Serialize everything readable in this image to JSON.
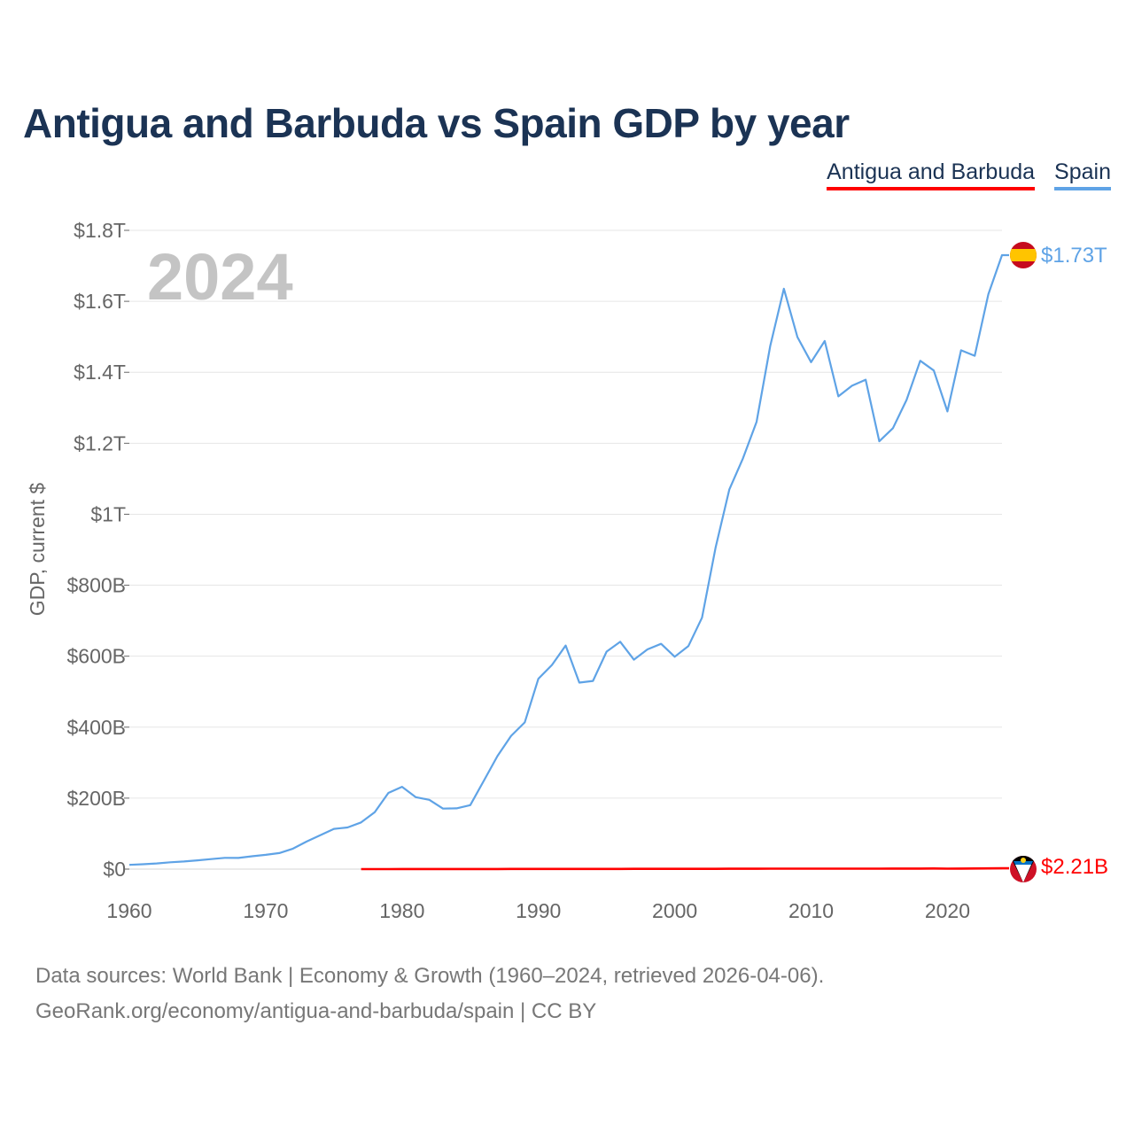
{
  "title": "Antigua and Barbuda vs Spain GDP by year",
  "legend": [
    {
      "name": "Antigua and Barbuda",
      "color": "#ff0000"
    },
    {
      "name": "Spain",
      "color": "#5fa3e6"
    }
  ],
  "year_label": "2024",
  "end_labels": {
    "spain": "$1.73T",
    "antigua": "$2.21B"
  },
  "footer": {
    "line1": "Data sources: World Bank | Economy & Growth (1960–2024, retrieved 2026-04-06).",
    "line2": "GeoRank.org/economy/antigua-and-barbuda/spain | CC BY"
  },
  "chart_data": {
    "type": "line",
    "title": "Antigua and Barbuda vs Spain GDP by year",
    "xlabel": "",
    "ylabel": "GDP, current $",
    "xlim": [
      1960,
      2024
    ],
    "ylim": [
      0,
      1800
    ],
    "value_unit": "billions USD",
    "x_ticks": [
      1960,
      1970,
      1980,
      1990,
      2000,
      2010,
      2020
    ],
    "y_ticks": [
      {
        "value": 0,
        "label": "$0"
      },
      {
        "value": 200,
        "label": "$200B"
      },
      {
        "value": 400,
        "label": "$400B"
      },
      {
        "value": 600,
        "label": "$600B"
      },
      {
        "value": 800,
        "label": "$800B"
      },
      {
        "value": 1000,
        "label": "$1T"
      },
      {
        "value": 1200,
        "label": "$1.2T"
      },
      {
        "value": 1400,
        "label": "$1.4T"
      },
      {
        "value": 1600,
        "label": "$1.6T"
      },
      {
        "value": 1800,
        "label": "$1.8T"
      }
    ],
    "series": [
      {
        "name": "Spain",
        "color": "#5fa3e6",
        "x": [
          1960,
          1961,
          1962,
          1963,
          1964,
          1965,
          1966,
          1967,
          1968,
          1969,
          1970,
          1971,
          1972,
          1973,
          1974,
          1975,
          1976,
          1977,
          1978,
          1979,
          1980,
          1981,
          1982,
          1983,
          1984,
          1985,
          1986,
          1987,
          1988,
          1989,
          1990,
          1991,
          1992,
          1993,
          1994,
          1995,
          1996,
          1997,
          1998,
          1999,
          2000,
          2001,
          2002,
          2003,
          2004,
          2005,
          2006,
          2007,
          2008,
          2009,
          2010,
          2011,
          2012,
          2013,
          2014,
          2015,
          2016,
          2017,
          2018,
          2019,
          2020,
          2021,
          2022,
          2023,
          2024
        ],
        "values": [
          12,
          13.8,
          16.1,
          19.3,
          21.5,
          24.8,
          28.2,
          31.6,
          31.5,
          36.3,
          40.1,
          45.1,
          57.7,
          77.6,
          95.6,
          113.4,
          117.3,
          131.6,
          160.3,
          214.6,
          232,
          202.8,
          195.3,
          170.5,
          171.3,
          180.3,
          249.5,
          318.5,
          375.4,
          413.4,
          536.5,
          575.5,
          630.1,
          525.5,
          530.2,
          612.9,
          640.7,
          590.1,
          619.2,
          634.9,
          598.4,
          628.3,
          708.5,
          907.1,
          1069.6,
          1157.3,
          1260.4,
          1474.3,
          1635.4,
          1499.1,
          1428.4,
          1488.1,
          1332.1,
          1362.2,
          1379.1,
          1205.5,
          1242.4,
          1322.2,
          1432.4,
          1405,
          1289.8,
          1461.9,
          1446.5,
          1620.1,
          1730
        ]
      },
      {
        "name": "Antigua and Barbuda",
        "color": "#ff0000",
        "x": [
          1977,
          1978,
          1979,
          1980,
          1981,
          1982,
          1983,
          1984,
          1985,
          1986,
          1987,
          1988,
          1989,
          1990,
          1991,
          1992,
          1993,
          1994,
          1995,
          1996,
          1997,
          1998,
          1999,
          2000,
          2001,
          2002,
          2003,
          2004,
          2005,
          2006,
          2007,
          2008,
          2009,
          2010,
          2011,
          2012,
          2013,
          2014,
          2015,
          2016,
          2017,
          2018,
          2019,
          2020,
          2021,
          2022,
          2023,
          2024
        ],
        "values": [
          0.08,
          0.09,
          0.11,
          0.13,
          0.15,
          0.16,
          0.18,
          0.21,
          0.24,
          0.29,
          0.33,
          0.38,
          0.43,
          0.46,
          0.48,
          0.5,
          0.53,
          0.59,
          0.58,
          0.62,
          0.65,
          0.68,
          0.71,
          0.74,
          0.78,
          0.8,
          0.84,
          0.9,
          0.98,
          1.12,
          1.26,
          1.35,
          1.21,
          1.15,
          1.14,
          1.2,
          1.19,
          1.25,
          1.34,
          1.44,
          1.47,
          1.6,
          1.69,
          1.37,
          1.47,
          1.76,
          2.03,
          2.21
        ]
      }
    ]
  }
}
